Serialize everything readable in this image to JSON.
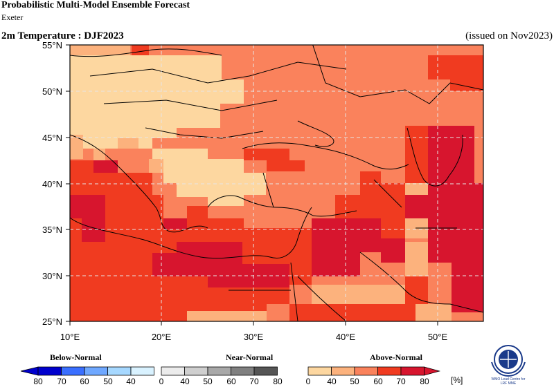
{
  "header": {
    "title": "Probabilistic Multi-Model Ensemble Forecast",
    "center": "Exeter",
    "variable": "2m Temperature : DJF2023",
    "issued": "(issued on Nov2023)"
  },
  "map": {
    "lon_range": [
      10,
      55
    ],
    "lat_range": [
      25,
      55
    ],
    "lon_ticks": [
      "10°E",
      "20°E",
      "30°E",
      "40°E",
      "50°E"
    ],
    "lat_ticks": [
      "25°N",
      "30°N",
      "35°N",
      "40°N",
      "45°N",
      "50°N",
      "55°N"
    ],
    "colors": {
      "cat_40_50": "#fdd7a0",
      "cat_50_60": "#fcb27d",
      "cat_60_70": "#fa825c",
      "cat_70_80": "#f03b20",
      "cat_80_plus": "#d7152e",
      "land_lines": "#000000",
      "grid": "#cccccc"
    },
    "above_normal_probability_regions": [
      {
        "name": "central-europe",
        "category": "40-50"
      },
      {
        "name": "balkans-interior",
        "category": "40-50"
      },
      {
        "name": "ukraine-russia",
        "category": "60-70"
      },
      {
        "name": "mediterranean-sea",
        "category": "70-80"
      },
      {
        "name": "north-africa",
        "category": "70-80"
      },
      {
        "name": "middle-east",
        "category": "80+"
      },
      {
        "name": "caspian-iran",
        "category": "80+"
      },
      {
        "name": "arabia",
        "category": "70-80"
      }
    ]
  },
  "legend": {
    "below_label": "Below-Normal",
    "near_label": "Near-Normal",
    "above_label": "Above-Normal",
    "unit": "[%]",
    "tick_labels": [
      "80",
      "70",
      "60",
      "50",
      "40",
      "0",
      "40",
      "50",
      "60",
      "70",
      "80",
      "0",
      "40",
      "50",
      "60",
      "70",
      "80"
    ],
    "below_colors": [
      "#0000cd",
      "#3a6fff",
      "#6fa8ff",
      "#a6d8ff",
      "#d9f2ff"
    ],
    "near_colors": [
      "#ececec",
      "#cfcfcf",
      "#a8a8a8",
      "#808080",
      "#555555"
    ],
    "above_colors": [
      "#fdd7a0",
      "#fcb27d",
      "#fa825c",
      "#f03b20",
      "#d7152e"
    ]
  },
  "logo": {
    "lines": [
      "WMO Lead Centre for",
      "LRF MME"
    ]
  }
}
